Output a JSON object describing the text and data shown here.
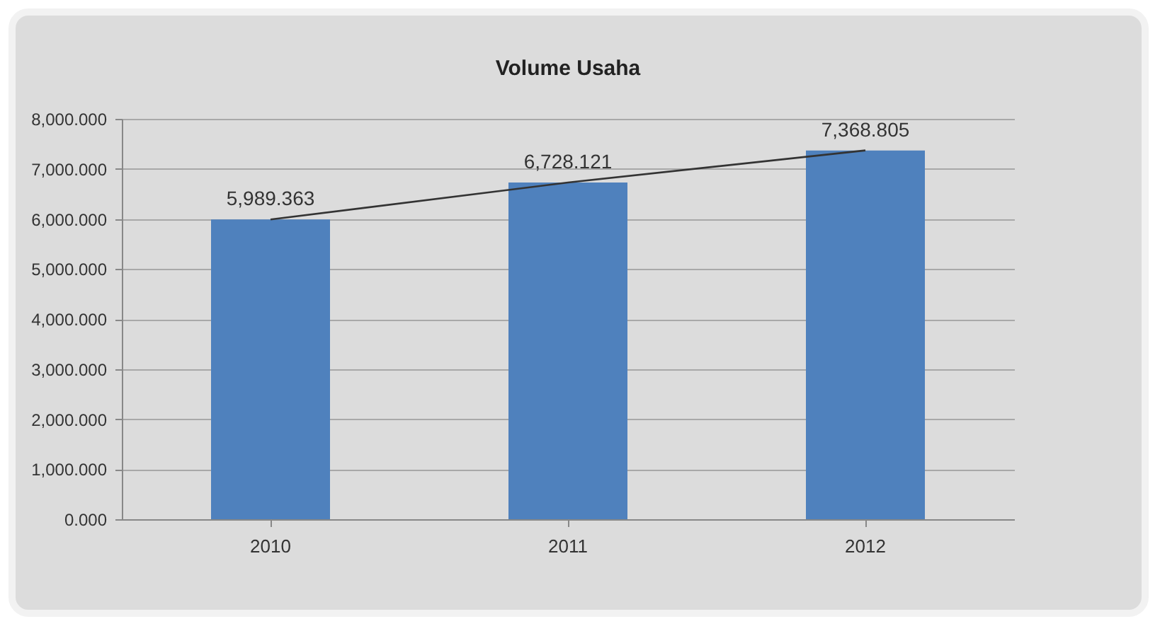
{
  "chart_data": {
    "type": "bar",
    "title": "Volume Usaha",
    "categories": [
      "2010",
      "2011",
      "2012"
    ],
    "series": [
      {
        "color": "#4f81bd",
        "values": [
          5989.363,
          6728.121,
          7368.805
        ],
        "value_labels": [
          "5,989.363",
          "6,728.121",
          "7,368.805"
        ]
      },
      {
        "type": "line",
        "color": "#333333",
        "values": [
          5989.363,
          6728.121,
          7368.805
        ]
      }
    ],
    "ylim": [
      0,
      8000
    ],
    "yticks": [
      {
        "value": 0,
        "label": "0.000"
      },
      {
        "value": 1000,
        "label": "1,000.000"
      },
      {
        "value": 2000,
        "label": "2,000.000"
      },
      {
        "value": 3000,
        "label": "3,000.000"
      },
      {
        "value": 4000,
        "label": "4,000.000"
      },
      {
        "value": 5000,
        "label": "5,000.000"
      },
      {
        "value": 6000,
        "label": "6,000.000"
      },
      {
        "value": 7000,
        "label": "7,000.000"
      },
      {
        "value": 8000,
        "label": "8,000.000"
      }
    ],
    "grid": "y"
  }
}
